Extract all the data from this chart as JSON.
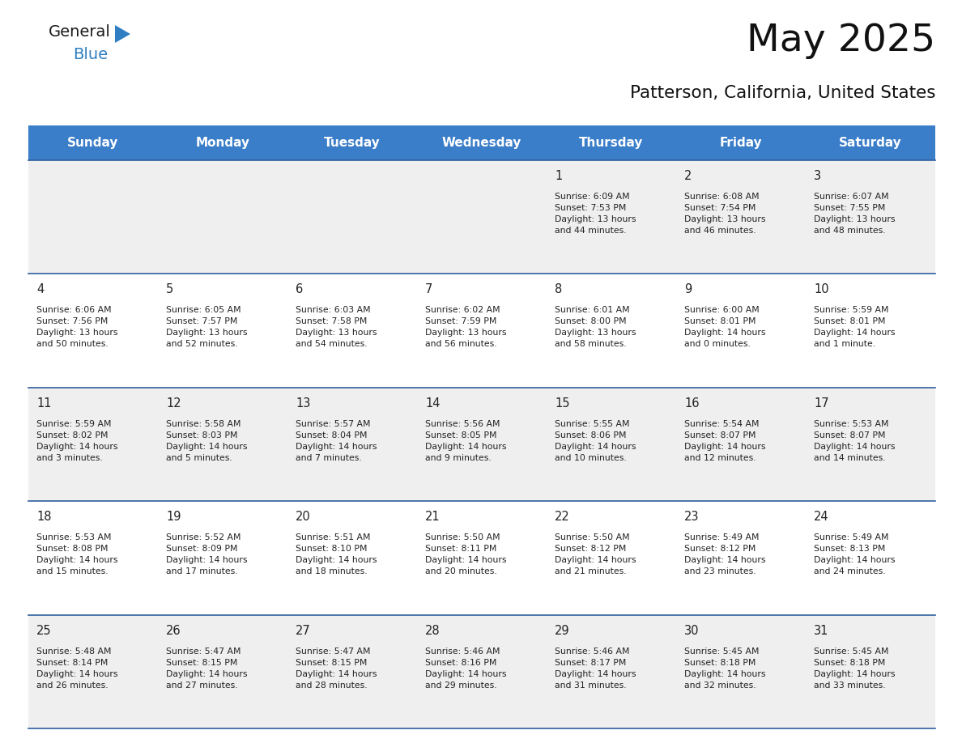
{
  "title": "May 2025",
  "subtitle": "Patterson, California, United States",
  "header_color": "#3A7DC9",
  "header_text_color": "#FFFFFF",
  "day_names": [
    "Sunday",
    "Monday",
    "Tuesday",
    "Wednesday",
    "Thursday",
    "Friday",
    "Saturday"
  ],
  "bg_color": "#FFFFFF",
  "cell_bg_light": "#EFEFEF",
  "cell_bg_white": "#FFFFFF",
  "row_line_color": "#2E5F9E",
  "text_color": "#222222",
  "logo_general_color": "#1a1a1a",
  "logo_blue_color": "#2E7EC1",
  "weeks": [
    [
      {
        "day": null,
        "info": null
      },
      {
        "day": null,
        "info": null
      },
      {
        "day": null,
        "info": null
      },
      {
        "day": null,
        "info": null
      },
      {
        "day": 1,
        "info": "Sunrise: 6:09 AM\nSunset: 7:53 PM\nDaylight: 13 hours\nand 44 minutes."
      },
      {
        "day": 2,
        "info": "Sunrise: 6:08 AM\nSunset: 7:54 PM\nDaylight: 13 hours\nand 46 minutes."
      },
      {
        "day": 3,
        "info": "Sunrise: 6:07 AM\nSunset: 7:55 PM\nDaylight: 13 hours\nand 48 minutes."
      }
    ],
    [
      {
        "day": 4,
        "info": "Sunrise: 6:06 AM\nSunset: 7:56 PM\nDaylight: 13 hours\nand 50 minutes."
      },
      {
        "day": 5,
        "info": "Sunrise: 6:05 AM\nSunset: 7:57 PM\nDaylight: 13 hours\nand 52 minutes."
      },
      {
        "day": 6,
        "info": "Sunrise: 6:03 AM\nSunset: 7:58 PM\nDaylight: 13 hours\nand 54 minutes."
      },
      {
        "day": 7,
        "info": "Sunrise: 6:02 AM\nSunset: 7:59 PM\nDaylight: 13 hours\nand 56 minutes."
      },
      {
        "day": 8,
        "info": "Sunrise: 6:01 AM\nSunset: 8:00 PM\nDaylight: 13 hours\nand 58 minutes."
      },
      {
        "day": 9,
        "info": "Sunrise: 6:00 AM\nSunset: 8:01 PM\nDaylight: 14 hours\nand 0 minutes."
      },
      {
        "day": 10,
        "info": "Sunrise: 5:59 AM\nSunset: 8:01 PM\nDaylight: 14 hours\nand 1 minute."
      }
    ],
    [
      {
        "day": 11,
        "info": "Sunrise: 5:59 AM\nSunset: 8:02 PM\nDaylight: 14 hours\nand 3 minutes."
      },
      {
        "day": 12,
        "info": "Sunrise: 5:58 AM\nSunset: 8:03 PM\nDaylight: 14 hours\nand 5 minutes."
      },
      {
        "day": 13,
        "info": "Sunrise: 5:57 AM\nSunset: 8:04 PM\nDaylight: 14 hours\nand 7 minutes."
      },
      {
        "day": 14,
        "info": "Sunrise: 5:56 AM\nSunset: 8:05 PM\nDaylight: 14 hours\nand 9 minutes."
      },
      {
        "day": 15,
        "info": "Sunrise: 5:55 AM\nSunset: 8:06 PM\nDaylight: 14 hours\nand 10 minutes."
      },
      {
        "day": 16,
        "info": "Sunrise: 5:54 AM\nSunset: 8:07 PM\nDaylight: 14 hours\nand 12 minutes."
      },
      {
        "day": 17,
        "info": "Sunrise: 5:53 AM\nSunset: 8:07 PM\nDaylight: 14 hours\nand 14 minutes."
      }
    ],
    [
      {
        "day": 18,
        "info": "Sunrise: 5:53 AM\nSunset: 8:08 PM\nDaylight: 14 hours\nand 15 minutes."
      },
      {
        "day": 19,
        "info": "Sunrise: 5:52 AM\nSunset: 8:09 PM\nDaylight: 14 hours\nand 17 minutes."
      },
      {
        "day": 20,
        "info": "Sunrise: 5:51 AM\nSunset: 8:10 PM\nDaylight: 14 hours\nand 18 minutes."
      },
      {
        "day": 21,
        "info": "Sunrise: 5:50 AM\nSunset: 8:11 PM\nDaylight: 14 hours\nand 20 minutes."
      },
      {
        "day": 22,
        "info": "Sunrise: 5:50 AM\nSunset: 8:12 PM\nDaylight: 14 hours\nand 21 minutes."
      },
      {
        "day": 23,
        "info": "Sunrise: 5:49 AM\nSunset: 8:12 PM\nDaylight: 14 hours\nand 23 minutes."
      },
      {
        "day": 24,
        "info": "Sunrise: 5:49 AM\nSunset: 8:13 PM\nDaylight: 14 hours\nand 24 minutes."
      }
    ],
    [
      {
        "day": 25,
        "info": "Sunrise: 5:48 AM\nSunset: 8:14 PM\nDaylight: 14 hours\nand 26 minutes."
      },
      {
        "day": 26,
        "info": "Sunrise: 5:47 AM\nSunset: 8:15 PM\nDaylight: 14 hours\nand 27 minutes."
      },
      {
        "day": 27,
        "info": "Sunrise: 5:47 AM\nSunset: 8:15 PM\nDaylight: 14 hours\nand 28 minutes."
      },
      {
        "day": 28,
        "info": "Sunrise: 5:46 AM\nSunset: 8:16 PM\nDaylight: 14 hours\nand 29 minutes."
      },
      {
        "day": 29,
        "info": "Sunrise: 5:46 AM\nSunset: 8:17 PM\nDaylight: 14 hours\nand 31 minutes."
      },
      {
        "day": 30,
        "info": "Sunrise: 5:45 AM\nSunset: 8:18 PM\nDaylight: 14 hours\nand 32 minutes."
      },
      {
        "day": 31,
        "info": "Sunrise: 5:45 AM\nSunset: 8:18 PM\nDaylight: 14 hours\nand 33 minutes."
      }
    ]
  ]
}
